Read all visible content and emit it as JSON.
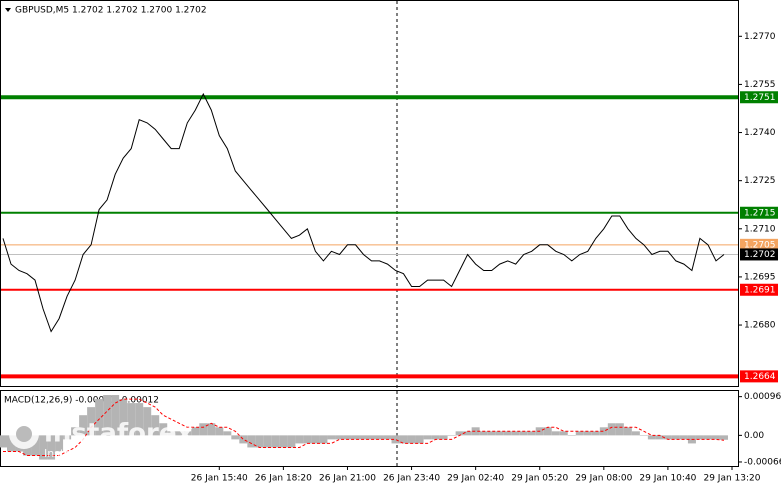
{
  "chart_data": [
    {
      "type": "line",
      "title": "GBPUSD,M5  1.2702 1.2702 1.2700 1.2702",
      "color": "#000000",
      "values": [
        1.2707,
        1.2699,
        1.2697,
        1.2696,
        1.2694,
        1.2685,
        1.2678,
        1.2682,
        1.2689,
        1.2694,
        1.2702,
        1.2705,
        1.2716,
        1.2719,
        1.2727,
        1.2732,
        1.2735,
        1.2744,
        1.2743,
        1.2741,
        1.2738,
        1.2735,
        1.2735,
        1.2743,
        1.2747,
        1.2752,
        1.2747,
        1.2739,
        1.2735,
        1.2728,
        1.2725,
        1.2722,
        1.2719,
        1.2716,
        1.2713,
        1.271,
        1.2707,
        1.2708,
        1.271,
        1.2703,
        1.27,
        1.2703,
        1.2702,
        1.2705,
        1.2705,
        1.2702,
        1.27,
        1.27,
        1.2699,
        1.2697,
        1.2696,
        1.2692,
        1.2692,
        1.2694,
        1.2694,
        1.2694,
        1.2692,
        1.2697,
        1.2702,
        1.2699,
        1.2697,
        1.2697,
        1.2699,
        1.27,
        1.2699,
        1.2702,
        1.2703,
        1.2705,
        1.2705,
        1.2703,
        1.2702,
        1.27,
        1.2702,
        1.2703,
        1.2707,
        1.271,
        1.2714,
        1.2714,
        1.271,
        1.2707,
        1.2705,
        1.2702,
        1.2703,
        1.2703,
        1.27,
        1.2699,
        1.2697,
        1.2707,
        1.2705,
        1.27,
        1.2702
      ],
      "xlim": [
        0,
        92
      ],
      "xticks": [
        {
          "value": 27.25,
          "label": "26 Jan 15:40"
        },
        {
          "value": 35.25,
          "label": "26 Jan 18:20"
        },
        {
          "value": 43.25,
          "label": "26 Jan 21:00"
        },
        {
          "value": 51.25,
          "label": "26 Jan 23:40"
        },
        {
          "value": 59.25,
          "label": "29 Jan 02:40"
        },
        {
          "value": 67.25,
          "label": "29 Jan 05:20"
        },
        {
          "value": 75.25,
          "label": "29 Jan 08:00"
        },
        {
          "value": 83.25,
          "label": "29 Jan 10:40"
        },
        {
          "value": 91.25,
          "label": "29 Jan 13:20"
        }
      ],
      "ylim": [
        1.2661,
        1.2781
      ],
      "yticks": [
        {
          "value": 1.277,
          "label": "1.2770"
        },
        1.2755,
        {
          "value": 1.274,
          "label": "1.2740"
        },
        1.2725,
        {
          "value": 1.271,
          "label": "1.2710"
        },
        1.2695,
        {
          "value": 1.268,
          "label": "1.2680"
        }
      ],
      "levels": [
        {
          "value": 1.2751,
          "color": "#008000"
        },
        {
          "value": 1.2715,
          "color": "#008000"
        },
        {
          "value": 1.2705,
          "color": "#f4a460"
        },
        {
          "value": 1.2691,
          "color": "#ff0000"
        },
        {
          "value": 1.2664,
          "color": "#ff0000"
        }
      ],
      "current_price": 1.2702,
      "watermark": {
        "brand": "instaforex",
        "tagline": "Instant Forex Trading"
      }
    },
    {
      "type": "macd",
      "title": "MACD(12,26,9) -0.00011 -0.00012",
      "ylim": [
        -0.00076,
        0.0011
      ],
      "yticks": [
        0.00096,
        {
          "value": 0,
          "label": "0.00"
        },
        -0.00066
      ],
      "series": [
        {
          "type": "bar",
          "color": "#b4b4b4",
          "values": [
            -0.0003,
            -0.0004,
            -0.0004,
            -0.0005,
            -0.0005,
            -0.0006,
            -0.0006,
            -0.0004,
            -0.0001,
            0.0002,
            0.0005,
            0.0007,
            0.0009,
            0.001,
            0.001,
            0.0009,
            0.0008,
            0.0008,
            0.0007,
            0.0005,
            0.0003,
            0.0001,
            0.0001,
            0.0001,
            0.0002,
            0.0003,
            0.0003,
            0.0002,
            0.0001,
            -0.0001,
            -0.0002,
            -0.0003,
            -0.0003,
            -0.0003,
            -0.0003,
            -0.0003,
            -0.0003,
            -0.0002,
            -0.0002,
            -0.0002,
            -0.0002,
            -0.0001,
            -0.0001,
            -0.0001,
            -0.0001,
            -0.0001,
            -0.0001,
            -0.0001,
            -0.0001,
            -0.0002,
            -0.0002,
            -0.0002,
            -0.0002,
            -0.0001,
            -0.0001,
            -0.0001,
            0,
            0.0001,
            0.0001,
            0.0002,
            0.0001,
            0.0001,
            0.0001,
            0.0001,
            0.0001,
            0.0001,
            0.0001,
            0.0002,
            0.0002,
            0.0001,
            0.0001,
            0,
            0.0001,
            0.0001,
            0.0001,
            0.0002,
            0.0003,
            0.0003,
            0.0002,
            0.0001,
            0,
            -0.0001,
            -0.0001,
            -0.0001,
            -0.0001,
            -0.0001,
            -0.0002,
            -0.0001,
            -0.0001,
            -0.0001,
            -0.00011
          ]
        },
        {
          "type": "line",
          "color": "#ff0000",
          "values": [
            -0.0004,
            -0.0004,
            -0.0004,
            -0.0005,
            -0.0005,
            -0.0005,
            -0.0005,
            -0.0005,
            -0.0004,
            -0.0003,
            -0.0001,
            0.0002,
            0.0004,
            0.0006,
            0.0008,
            0.0009,
            0.0009,
            0.0009,
            0.0008,
            0.0007,
            0.0005,
            0.0004,
            0.0003,
            0.0002,
            0.0002,
            0.0002,
            0.0003,
            0.0002,
            0.0002,
            0.0001,
            -0.0001,
            -0.0002,
            -0.0003,
            -0.0003,
            -0.0003,
            -0.0003,
            -0.0003,
            -0.0003,
            -0.0002,
            -0.0002,
            -0.0002,
            -0.0002,
            -0.0001,
            -0.0001,
            -0.0001,
            -0.0001,
            -0.0001,
            -0.0001,
            -0.0001,
            -0.0001,
            -0.0002,
            -0.0002,
            -0.0002,
            -0.0002,
            -0.0001,
            -0.0001,
            -0.0001,
            0,
            0.0001,
            0.0001,
            0.0001,
            0.0001,
            0.0001,
            0.0001,
            0.0001,
            0.0001,
            0.0001,
            0.0001,
            0.0002,
            0.0002,
            0.0001,
            0.0001,
            0.0001,
            0.0001,
            0.0001,
            0.0001,
            0.0002,
            0.0002,
            0.0002,
            0.0002,
            0.0001,
            0,
            0,
            -0.0001,
            -0.0001,
            -0.0001,
            -0.0001,
            -0.0001,
            -0.0001,
            -0.0001,
            -0.00012
          ]
        }
      ]
    }
  ]
}
